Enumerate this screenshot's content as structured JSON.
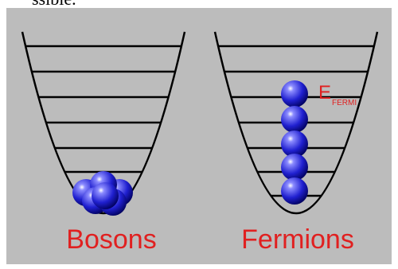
{
  "header_fragment": "ssible.",
  "labels": {
    "bosons": "Bosons",
    "fermions": "Fermions"
  },
  "fermi_label": {
    "main": "E",
    "subscript": "FERMI"
  }
}
